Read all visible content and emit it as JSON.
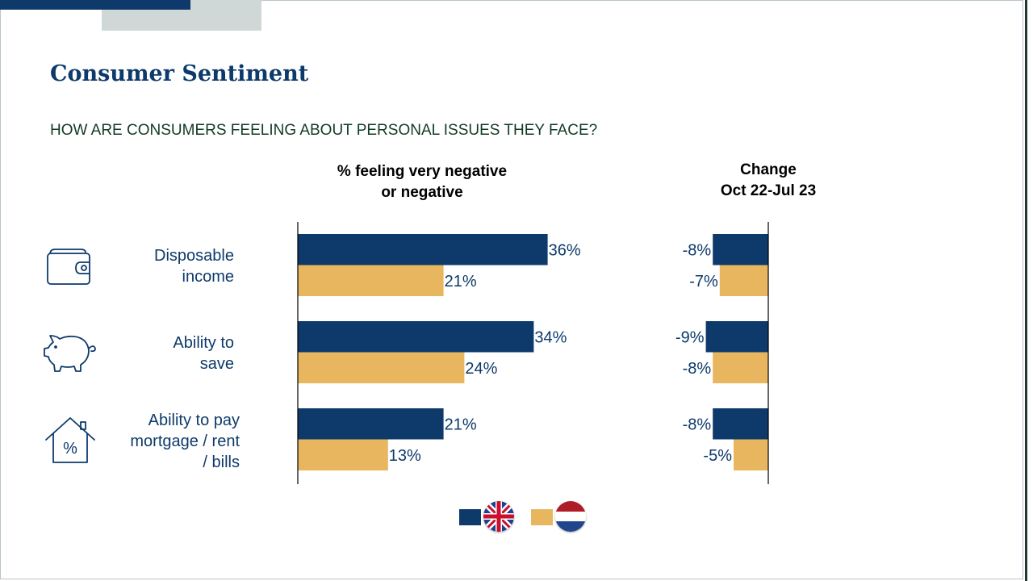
{
  "title": "Consumer Sentiment",
  "question": "HOW ARE CONSUMERS FEELING ABOUT PERSONAL ISSUES THEY FACE?",
  "headers": {
    "main_line1": "% feeling very negative",
    "main_line2": "or negative",
    "change_line1": "Change",
    "change_line2": "Oct 22-Jul 23"
  },
  "rows": [
    {
      "label_lines": [
        "Disposable",
        "income"
      ],
      "icon": "wallet-icon"
    },
    {
      "label_lines": [
        "Ability to",
        "save"
      ],
      "icon": "piggy-bank-icon"
    },
    {
      "label_lines": [
        "Ability to pay",
        "mortgage / rent",
        "/ bills"
      ],
      "icon": "house-percent-icon"
    }
  ],
  "colors": {
    "uk": "#0d3a6b",
    "nl": "#e9b660"
  },
  "legend": [
    {
      "series": "UK",
      "icon": "uk-flag-icon"
    },
    {
      "series": "NL",
      "icon": "netherlands-flag-icon"
    }
  ],
  "chart_data": {
    "type": "bar",
    "orientation": "horizontal",
    "categories": [
      "Disposable income",
      "Ability to save",
      "Ability to pay mortgage / rent / bills"
    ],
    "series": [
      {
        "values": [
          36,
          34,
          21
        ],
        "labels": [
          "36%",
          "34%",
          "21%"
        ],
        "change": [
          -8,
          -9,
          -8
        ],
        "change_labels": [
          "-8%",
          "-9%",
          "-8%"
        ]
      },
      {
        "values": [
          21,
          24,
          13
        ],
        "labels": [
          "21%",
          "24%",
          "13%"
        ],
        "change": [
          -7,
          -8,
          -5
        ],
        "change_labels": [
          "-7%",
          "-8%",
          "-5%"
        ]
      }
    ],
    "title": "% feeling very negative or negative",
    "change_title": "Change Oct 22-Jul 23",
    "xlabel": "",
    "ylabel": "",
    "legend_position": "bottom"
  }
}
